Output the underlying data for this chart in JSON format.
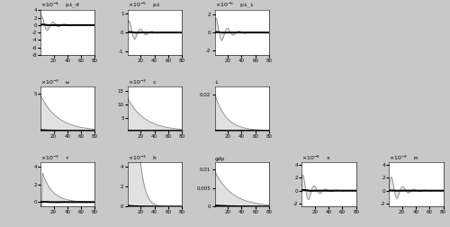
{
  "panels": [
    {
      "name": "pi_d",
      "scale": "-4",
      "ylim": [
        -0.0008,
        0.0004
      ],
      "yticks": [
        0.0004,
        0.0002,
        0,
        -0.0002,
        -0.0004,
        -0.0006,
        -0.0008
      ],
      "row": 0,
      "col": 0
    },
    {
      "name": "pi",
      "scale": "-5",
      "ylim": [
        -1.2e-05,
        1.2e-05
      ],
      "yticks": [
        1e-05,
        0,
        -1e-05
      ],
      "row": 0,
      "col": 1
    },
    {
      "name": "pi_i",
      "scale": "-5",
      "ylim": [
        -2.5e-05,
        2.5e-05
      ],
      "yticks": [
        2e-05,
        0,
        -2e-05
      ],
      "row": 0,
      "col": 2
    },
    {
      "name": "w",
      "scale": "-3",
      "ylim": [
        0,
        0.006
      ],
      "yticks": [
        0.005
      ],
      "row": 1,
      "col": 0
    },
    {
      "name": "c",
      "scale": "-3",
      "ylim": [
        0,
        0.017
      ],
      "yticks": [
        0.015,
        0.01,
        0.005
      ],
      "row": 1,
      "col": 1
    },
    {
      "name": "i",
      "scale": "",
      "ylim": [
        0,
        0.025
      ],
      "yticks": [
        0.02
      ],
      "row": 1,
      "col": 2
    },
    {
      "name": "r",
      "scale": "-3",
      "ylim": [
        -0.0005,
        0.0045
      ],
      "yticks": [
        0.004,
        0.002,
        0
      ],
      "row": 2,
      "col": 0
    },
    {
      "name": "h",
      "scale": "-3",
      "ylim": [
        0,
        0.0045
      ],
      "yticks": [
        0.004,
        0.002,
        0
      ],
      "row": 2,
      "col": 1
    },
    {
      "name": "gdp",
      "scale": "",
      "ylim": [
        0,
        0.012
      ],
      "yticks": [
        0.01,
        0.005,
        0
      ],
      "row": 2,
      "col": 2
    },
    {
      "name": "x",
      "scale": "-6",
      "ylim": [
        -2.5e-06,
        4.5e-06
      ],
      "yticks": [
        4e-06,
        2e-06,
        0,
        -2e-06
      ],
      "row": 2,
      "col": 3
    },
    {
      "name": "m",
      "scale": "-3",
      "ylim": [
        -0.0025,
        0.0045
      ],
      "yticks": [
        0.004,
        0.002,
        0,
        -0.002
      ],
      "row": 2,
      "col": 4
    }
  ],
  "T": 80,
  "bg_color": "#c8c8c8",
  "plot_bg": "#ffffff",
  "thin_color": "#888888",
  "thick_color": "#000000"
}
